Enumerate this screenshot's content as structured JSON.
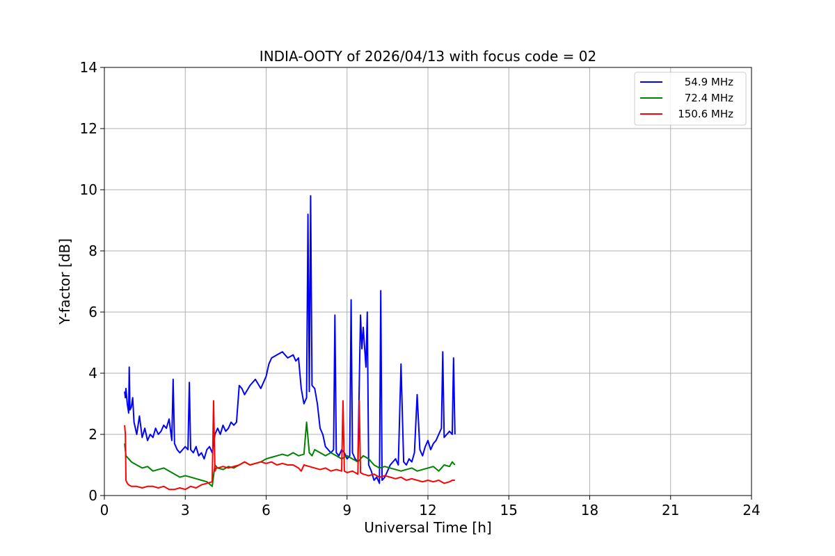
{
  "chart_data": {
    "type": "line",
    "title": "INDIA-OOTY of 2026/04/13 with focus code = 02",
    "xlabel": "Universal Time [h]",
    "ylabel": "Y-factor [dB]",
    "xlim": [
      0,
      24
    ],
    "ylim": [
      0,
      14
    ],
    "xticks": [
      0,
      3,
      6,
      9,
      12,
      15,
      18,
      21,
      24
    ],
    "yticks": [
      0,
      2,
      4,
      6,
      8,
      10,
      12,
      14
    ],
    "grid": true,
    "legend_position": "top-right",
    "series": [
      {
        "name": "54.9 MHz",
        "color": "#0000ff",
        "x": [
          0.75,
          0.78,
          0.8,
          0.85,
          0.9,
          0.92,
          0.95,
          1.0,
          1.05,
          1.1,
          1.2,
          1.3,
          1.4,
          1.5,
          1.6,
          1.7,
          1.8,
          1.9,
          2.0,
          2.1,
          2.2,
          2.3,
          2.4,
          2.5,
          2.55,
          2.6,
          2.7,
          2.8,
          2.9,
          3.0,
          3.1,
          3.15,
          3.2,
          3.3,
          3.4,
          3.5,
          3.6,
          3.7,
          3.8,
          3.9,
          4.0,
          4.1,
          4.2,
          4.3,
          4.4,
          4.5,
          4.6,
          4.7,
          4.8,
          4.9,
          5.0,
          5.1,
          5.2,
          5.4,
          5.6,
          5.8,
          6.0,
          6.1,
          6.2,
          6.4,
          6.6,
          6.8,
          7.0,
          7.1,
          7.2,
          7.3,
          7.4,
          7.5,
          7.55,
          7.6,
          7.65,
          7.7,
          7.8,
          7.9,
          8.0,
          8.1,
          8.2,
          8.3,
          8.4,
          8.5,
          8.55,
          8.6,
          8.7,
          8.8,
          8.9,
          9.0,
          9.1,
          9.15,
          9.2,
          9.3,
          9.4,
          9.5,
          9.55,
          9.6,
          9.7,
          9.75,
          9.8,
          9.9,
          10.0,
          10.1,
          10.2,
          10.25,
          10.3,
          10.4,
          10.5,
          10.6,
          10.7,
          10.8,
          10.9,
          11.0,
          11.1,
          11.2,
          11.3,
          11.4,
          11.5,
          11.6,
          11.7,
          11.8,
          11.9,
          12.0,
          12.1,
          12.2,
          12.3,
          12.4,
          12.5,
          12.55,
          12.6,
          12.7,
          12.8,
          12.9,
          12.95,
          13.0
        ],
        "y": [
          3.4,
          3.2,
          3.5,
          3.0,
          2.7,
          4.2,
          2.8,
          2.9,
          3.2,
          2.4,
          2.0,
          2.6,
          1.9,
          2.2,
          1.8,
          2.0,
          1.9,
          2.2,
          2.0,
          2.1,
          2.3,
          2.2,
          2.5,
          1.8,
          3.8,
          1.7,
          1.5,
          1.4,
          1.5,
          1.6,
          1.5,
          3.7,
          1.5,
          1.4,
          1.6,
          1.3,
          1.4,
          1.2,
          1.5,
          1.6,
          1.4,
          2.0,
          2.2,
          2.0,
          2.3,
          2.1,
          2.2,
          2.4,
          2.3,
          2.4,
          3.6,
          3.5,
          3.3,
          3.6,
          3.8,
          3.5,
          3.9,
          4.3,
          4.5,
          4.6,
          4.7,
          4.5,
          4.6,
          4.4,
          4.5,
          3.5,
          3.0,
          3.2,
          9.2,
          3.4,
          9.8,
          3.6,
          3.5,
          3.0,
          2.2,
          2.0,
          1.6,
          1.5,
          1.4,
          1.5,
          5.9,
          1.4,
          1.3,
          1.5,
          1.4,
          1.2,
          1.3,
          6.4,
          1.4,
          1.2,
          1.1,
          5.9,
          4.8,
          5.5,
          4.2,
          6.0,
          1.0,
          0.8,
          0.5,
          0.6,
          0.4,
          6.7,
          0.5,
          0.6,
          0.8,
          1.0,
          1.1,
          1.2,
          1.0,
          4.3,
          1.1,
          1.0,
          1.2,
          1.1,
          1.4,
          3.3,
          1.5,
          1.3,
          1.6,
          1.8,
          1.5,
          1.7,
          1.8,
          2.0,
          2.2,
          4.7,
          1.9,
          2.0,
          2.1,
          2.0,
          4.5,
          2.0
        ]
      },
      {
        "name": "72.4 MHz",
        "color": "#008000",
        "x": [
          0.75,
          0.8,
          0.9,
          1.0,
          1.2,
          1.4,
          1.6,
          1.8,
          2.0,
          2.2,
          2.4,
          2.6,
          2.8,
          3.0,
          3.2,
          3.4,
          3.6,
          3.8,
          4.0,
          4.1,
          4.2,
          4.4,
          4.6,
          4.8,
          5.0,
          5.2,
          5.4,
          5.6,
          5.8,
          6.0,
          6.2,
          6.4,
          6.6,
          6.8,
          7.0,
          7.2,
          7.4,
          7.5,
          7.6,
          7.7,
          7.8,
          8.0,
          8.2,
          8.4,
          8.6,
          8.8,
          9.0,
          9.2,
          9.4,
          9.6,
          9.8,
          10.0,
          10.2,
          10.4,
          10.6,
          10.8,
          11.0,
          11.2,
          11.4,
          11.6,
          11.8,
          12.0,
          12.2,
          12.4,
          12.6,
          12.8,
          12.9,
          13.0
        ],
        "y": [
          1.7,
          1.3,
          1.2,
          1.1,
          1.0,
          0.9,
          0.95,
          0.8,
          0.85,
          0.9,
          0.8,
          0.7,
          0.6,
          0.65,
          0.6,
          0.55,
          0.5,
          0.45,
          0.3,
          1.0,
          0.9,
          0.85,
          0.95,
          0.9,
          1.0,
          1.1,
          1.0,
          1.05,
          1.1,
          1.2,
          1.25,
          1.3,
          1.35,
          1.3,
          1.4,
          1.3,
          1.35,
          2.4,
          1.4,
          1.3,
          1.5,
          1.4,
          1.3,
          1.4,
          1.3,
          1.2,
          1.3,
          1.2,
          1.1,
          1.3,
          1.2,
          1.0,
          0.9,
          0.95,
          0.9,
          0.85,
          0.8,
          0.85,
          0.9,
          0.8,
          0.85,
          0.9,
          0.95,
          0.8,
          1.0,
          0.95,
          1.1,
          1.0
        ]
      },
      {
        "name": "150.6 MHz",
        "color": "#ff0000",
        "x": [
          0.75,
          0.78,
          0.8,
          0.85,
          0.9,
          1.0,
          1.2,
          1.4,
          1.6,
          1.8,
          2.0,
          2.2,
          2.4,
          2.6,
          2.8,
          3.0,
          3.2,
          3.4,
          3.6,
          3.8,
          4.0,
          4.05,
          4.1,
          4.15,
          4.2,
          4.4,
          4.6,
          4.8,
          5.0,
          5.2,
          5.4,
          5.6,
          5.8,
          6.0,
          6.2,
          6.4,
          6.6,
          6.8,
          7.0,
          7.2,
          7.3,
          7.4,
          7.6,
          7.8,
          8.0,
          8.2,
          8.4,
          8.6,
          8.8,
          8.85,
          8.9,
          9.0,
          9.2,
          9.4,
          9.45,
          9.5,
          9.6,
          9.8,
          10.0,
          10.2,
          10.4,
          10.6,
          10.8,
          11.0,
          11.2,
          11.4,
          11.6,
          11.8,
          12.0,
          12.2,
          12.4,
          12.6,
          12.8,
          12.9,
          13.0
        ],
        "y": [
          2.3,
          2.0,
          0.5,
          0.4,
          0.35,
          0.3,
          0.3,
          0.25,
          0.3,
          0.3,
          0.25,
          0.3,
          0.2,
          0.2,
          0.25,
          0.2,
          0.3,
          0.25,
          0.35,
          0.4,
          0.45,
          3.1,
          0.8,
          0.9,
          0.9,
          0.95,
          0.9,
          0.95,
          1.0,
          1.1,
          1.0,
          1.05,
          1.1,
          1.05,
          1.1,
          1.0,
          1.05,
          1.0,
          1.0,
          0.9,
          0.8,
          1.0,
          0.95,
          0.9,
          0.85,
          0.9,
          0.8,
          0.85,
          0.8,
          3.1,
          0.8,
          0.75,
          0.8,
          0.7,
          3.1,
          0.75,
          0.7,
          0.65,
          0.7,
          0.6,
          0.65,
          0.6,
          0.55,
          0.6,
          0.5,
          0.55,
          0.5,
          0.45,
          0.5,
          0.45,
          0.5,
          0.4,
          0.45,
          0.5,
          0.5
        ]
      }
    ]
  }
}
